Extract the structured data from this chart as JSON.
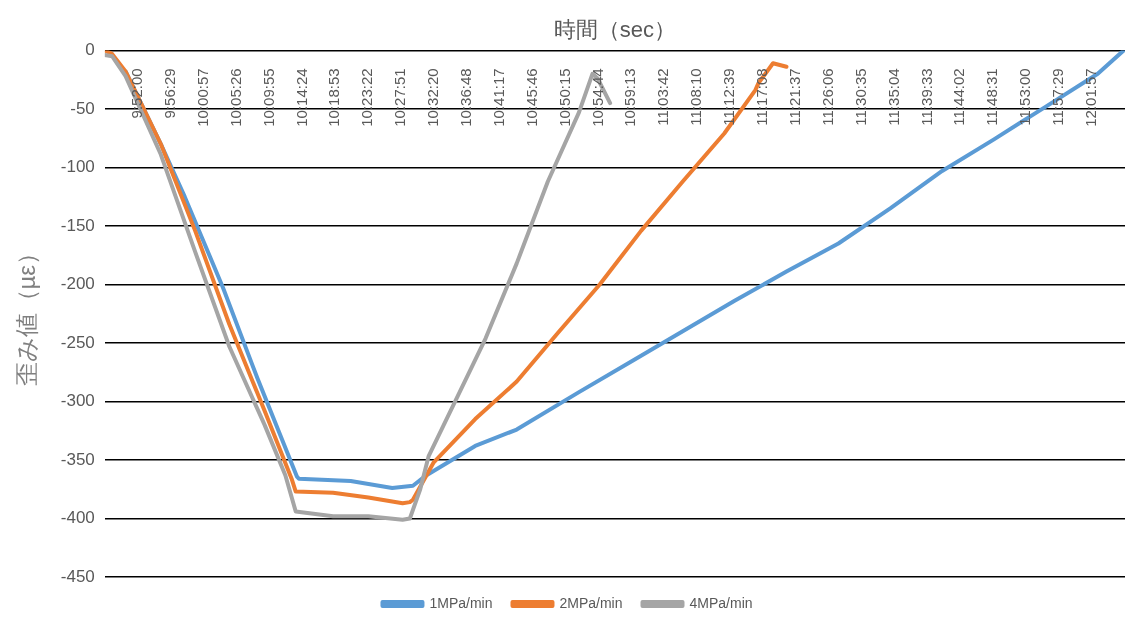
{
  "chart_data": {
    "type": "line",
    "xlabel": "時間（sec）",
    "ylabel": "歪み値（µε）",
    "xlim": [
      9.7913,
      12.1079
    ],
    "ylim": [
      -450,
      0
    ],
    "yticks": [
      0,
      -50,
      -100,
      -150,
      -200,
      -250,
      -300,
      -350,
      -400,
      -450
    ],
    "xticks": [
      {
        "value": 9.8667,
        "label": "9:52:00"
      },
      {
        "value": 9.9414,
        "label": "9:56:29"
      },
      {
        "value": 10.0158,
        "label": "10:00:57"
      },
      {
        "value": 10.0906,
        "label": "10:05:26"
      },
      {
        "value": 10.1653,
        "label": "10:09:55"
      },
      {
        "value": 10.24,
        "label": "10:14:24"
      },
      {
        "value": 10.3147,
        "label": "10:18:53"
      },
      {
        "value": 10.3894,
        "label": "10:23:22"
      },
      {
        "value": 10.4642,
        "label": "10:27:51"
      },
      {
        "value": 10.5389,
        "label": "10:32:20"
      },
      {
        "value": 10.6133,
        "label": "10:36:48"
      },
      {
        "value": 10.6881,
        "label": "10:41:17"
      },
      {
        "value": 10.7628,
        "label": "10:45:46"
      },
      {
        "value": 10.8375,
        "label": "10:50:15"
      },
      {
        "value": 10.9122,
        "label": "10:54:44"
      },
      {
        "value": 10.9869,
        "label": "10:59:13"
      },
      {
        "value": 11.0617,
        "label": "11:03:42"
      },
      {
        "value": 11.1361,
        "label": "11:08:10"
      },
      {
        "value": 11.2108,
        "label": "11:12:39"
      },
      {
        "value": 11.2856,
        "label": "11:17:08"
      },
      {
        "value": 11.3603,
        "label": "11:21:37"
      },
      {
        "value": 11.435,
        "label": "11:26:06"
      },
      {
        "value": 11.5097,
        "label": "11:30:35"
      },
      {
        "value": 11.5844,
        "label": "11:35:04"
      },
      {
        "value": 11.6592,
        "label": "11:39:33"
      },
      {
        "value": 11.7339,
        "label": "11:44:02"
      },
      {
        "value": 11.8086,
        "label": "11:48:31"
      },
      {
        "value": 11.8833,
        "label": "11:53:00"
      },
      {
        "value": 11.9581,
        "label": "11:57:29"
      },
      {
        "value": 12.0325,
        "label": "12:01:57"
      }
    ],
    "grid": "y",
    "legend": "bottom",
    "marker": "none",
    "line_style": "solid",
    "series": [
      {
        "name": "1MPa/min",
        "color": "#5b9bd5",
        "x": [
          9.8384,
          9.9185,
          9.9727,
          10.0599,
          10.1376,
          10.2272,
          10.2319,
          10.3497,
          10.4439,
          10.491,
          10.5217,
          10.6324,
          10.7266,
          10.868,
          10.9858,
          11.1036,
          11.2214,
          11.3392,
          11.4571,
          11.5749,
          11.6927,
          11.8104,
          11.9282,
          12.046,
          12.1049
        ],
        "values": [
          -18,
          -80,
          -125,
          -203,
          -280,
          -364,
          -366,
          -368,
          -374,
          -372,
          -363,
          -338,
          -324,
          -292,
          -266,
          -240,
          -214,
          -189,
          -165,
          -135,
          -103,
          -76,
          -48,
          -20,
          0
        ]
      },
      {
        "name": "2MPa/min",
        "color": "#ed7d31",
        "x": [
          9.7913,
          9.8078,
          9.8384,
          9.9185,
          9.9963,
          10.074,
          10.1541,
          10.2154,
          10.2248,
          10.3096,
          10.3897,
          10.4675,
          10.484,
          10.491,
          10.5382,
          10.6324,
          10.7266,
          10.8209,
          10.9151,
          11.0094,
          11.1036,
          11.1979,
          11.2685,
          11.2756,
          11.3086,
          11.3392
        ],
        "values": [
          0,
          -3,
          -18,
          -80,
          -154,
          -234,
          -308,
          -366,
          -377,
          -378,
          -382,
          -387,
          -386,
          -384,
          -352,
          -315,
          -283,
          -241,
          -200,
          -154,
          -112,
          -71,
          -34,
          -28,
          -11,
          -14
        ]
      },
      {
        "name": "4MPa/min",
        "color": "#a5a5a5",
        "x": [
          9.7913,
          9.8078,
          9.8384,
          9.9185,
          9.9963,
          10.074,
          10.1541,
          10.2012,
          10.2248,
          10.3096,
          10.3897,
          10.4675,
          10.484,
          10.5075,
          10.5264,
          10.597,
          10.656,
          10.7266,
          10.7973,
          10.868,
          10.8986,
          10.9104,
          10.9387
        ],
        "values": [
          -4,
          -5,
          -22,
          -89,
          -172,
          -253,
          -320,
          -363,
          -394,
          -398,
          -398,
          -401,
          -400,
          -375,
          -347,
          -292,
          -246,
          -182,
          -112,
          -53,
          -20,
          -24,
          -45
        ]
      }
    ]
  }
}
